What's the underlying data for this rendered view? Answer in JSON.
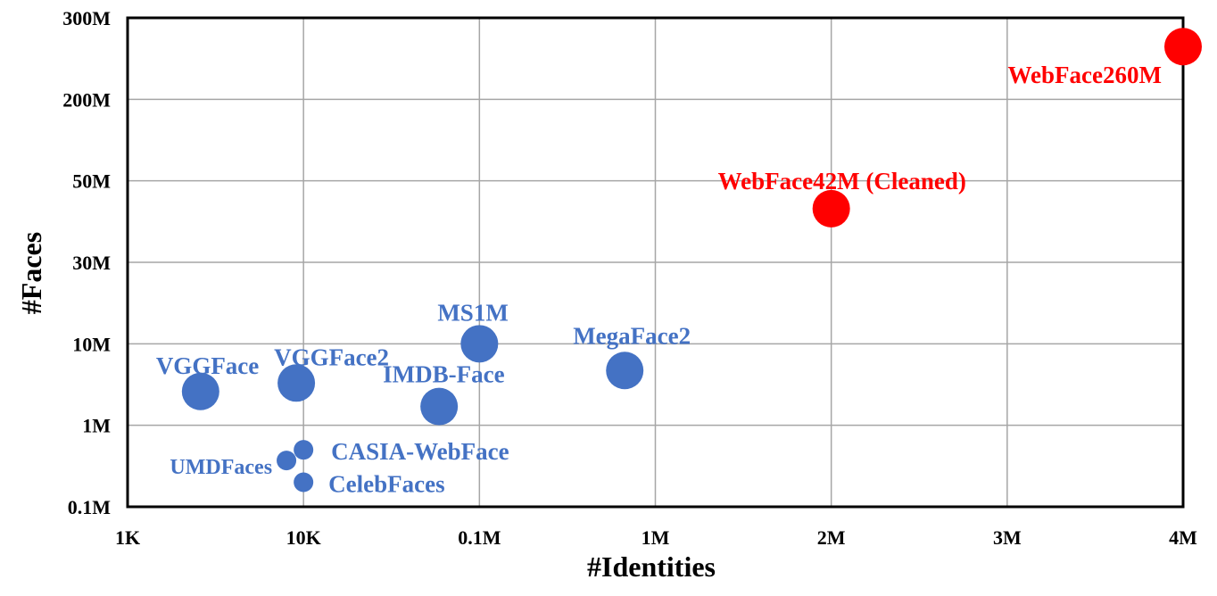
{
  "chart_data": {
    "type": "scatter",
    "title": "",
    "xlabel": "#Identities",
    "ylabel": "#Faces",
    "x_ticks": [
      "1K",
      "10K",
      "0.1M",
      "1M",
      "2M",
      "3M",
      "4M"
    ],
    "y_ticks": [
      "0.1M",
      "1M",
      "10M",
      "30M",
      "50M",
      "200M",
      "300M"
    ],
    "grid": true,
    "colors": {
      "existing": "#4472C4",
      "new": "#FF0000",
      "grid": "#A6A6A6",
      "frame": "#000000"
    },
    "points": [
      {
        "label": "VGGFace",
        "x": "2.6K",
        "y": "2.6M",
        "group": "existing",
        "size": "large"
      },
      {
        "label": "VGGFace2",
        "x": "9.1K",
        "y": "3.3M",
        "group": "existing",
        "size": "large"
      },
      {
        "label": "IMDB-Face",
        "x": "59K",
        "y": "1.7M",
        "group": "existing",
        "size": "large"
      },
      {
        "label": "MS1M",
        "x": "0.1M",
        "y": "10M",
        "group": "existing",
        "size": "large"
      },
      {
        "label": "MegaFace2",
        "x": "0.67M",
        "y": "4.7M",
        "group": "existing",
        "size": "large"
      },
      {
        "label": "CASIA-WebFace",
        "x": "10K",
        "y": "0.5M",
        "group": "existing",
        "size": "small"
      },
      {
        "label": "UMDFaces",
        "x": "8K",
        "y": "0.37M",
        "group": "existing",
        "size": "small"
      },
      {
        "label": "CelebFaces",
        "x": "10K",
        "y": "0.2M",
        "group": "existing",
        "size": "small"
      },
      {
        "label": "WebFace42M (Cleaned)",
        "x": "2M",
        "y": "42M",
        "group": "new",
        "size": "large"
      },
      {
        "label": "WebFace260M",
        "x": "4M",
        "y": "260M",
        "group": "new",
        "size": "large"
      }
    ]
  }
}
